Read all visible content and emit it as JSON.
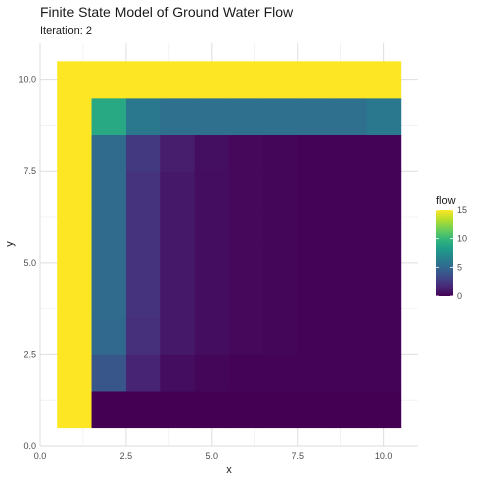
{
  "chart_data": {
    "type": "heatmap",
    "title": "Finite State Model of Ground Water Flow",
    "subtitle": "Iteration: 2",
    "xlabel": "x",
    "ylabel": "y",
    "xlim": [
      0,
      11
    ],
    "ylim": [
      0,
      11
    ],
    "x_ticks": [
      0,
      2.5,
      5,
      7.5,
      10
    ],
    "x_tick_labels": [
      "0.0",
      "2.5",
      "5.0",
      "7.5",
      "10.0"
    ],
    "y_ticks": [
      0,
      2.5,
      5,
      7.5,
      10
    ],
    "y_tick_labels": [
      "0.0",
      "2.5",
      "5.0",
      "7.5",
      "10.0"
    ],
    "grid": true,
    "x": [
      1,
      2,
      3,
      4,
      5,
      6,
      7,
      8,
      9,
      10
    ],
    "y": [
      1,
      2,
      3,
      4,
      5,
      6,
      7,
      8,
      9,
      10
    ],
    "z_rows_from_y1": [
      [
        15,
        0,
        0,
        0,
        0,
        0,
        0,
        0,
        0,
        0
      ],
      [
        15,
        4,
        1.5,
        0.5,
        0.2,
        0.1,
        0.1,
        0.1,
        0.1,
        0.1
      ],
      [
        15,
        5,
        2,
        1,
        0.5,
        0.3,
        0.2,
        0.1,
        0.1,
        0.1
      ],
      [
        15,
        5.2,
        2.2,
        1,
        0.5,
        0.3,
        0.2,
        0.1,
        0.1,
        0.1
      ],
      [
        15,
        5.2,
        2.2,
        1,
        0.5,
        0.3,
        0.2,
        0.1,
        0.1,
        0.1
      ],
      [
        15,
        5.2,
        2.2,
        1,
        0.5,
        0.3,
        0.2,
        0.1,
        0.1,
        0.1
      ],
      [
        15,
        5.2,
        2.2,
        1,
        0.5,
        0.3,
        0.2,
        0.1,
        0.1,
        0.1
      ],
      [
        15,
        5.2,
        2.5,
        1.2,
        0.6,
        0.3,
        0.2,
        0.1,
        0.1,
        0.1
      ],
      [
        15,
        9,
        6,
        5.5,
        5.5,
        5.5,
        5.5,
        5.5,
        5.5,
        6
      ],
      [
        15,
        15,
        15,
        15,
        15,
        15,
        15,
        15,
        15,
        15
      ]
    ],
    "legend": {
      "title": "flow",
      "placement": "right",
      "ticks": [
        0,
        5,
        10,
        15
      ],
      "tick_labels": [
        "0",
        "5",
        "10",
        "15"
      ],
      "range": [
        0,
        15
      ]
    },
    "colorscale": [
      "#440154",
      "#482878",
      "#3e4a89",
      "#31688e",
      "#26828e",
      "#1f9e89",
      "#35b779",
      "#6ece58",
      "#b5de2b",
      "#fde725"
    ]
  }
}
